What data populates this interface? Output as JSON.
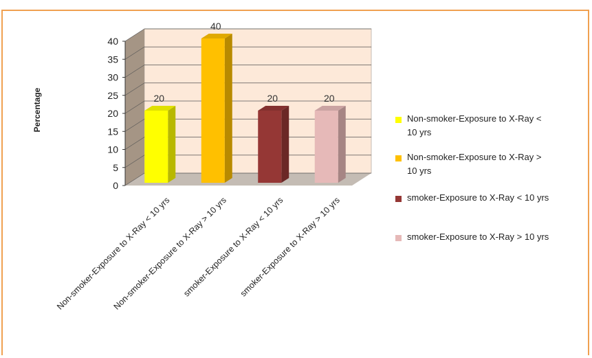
{
  "chart_data": {
    "type": "bar",
    "ylabel": "Percentage",
    "ylim": [
      0,
      40
    ],
    "yticks": [
      0,
      5,
      10,
      15,
      20,
      25,
      30,
      35,
      40
    ],
    "grid": true,
    "legend_position": "right",
    "categories": [
      "Non-smoker-Exposure to X-Ray < 10 yrs",
      "Non-smoker-Exposure to X-Ray > 10 yrs",
      "smoker-Exposure to X-Ray < 10 yrs",
      "smoker-Exposure to X-Ray > 10 yrs"
    ],
    "values": [
      20,
      40,
      20,
      20
    ],
    "data_labels": [
      "20",
      "40",
      "20",
      "20"
    ],
    "colors": [
      "#ffff00",
      "#ffc000",
      "#953735",
      "#e6b9b8"
    ],
    "legend": [
      {
        "line1": "Non-smoker-Exposure to X-Ray <",
        "line2": "10  yrs"
      },
      {
        "line1": "Non-smoker-Exposure to X-Ray >",
        "line2": "10  yrs"
      },
      {
        "line1": "smoker-Exposure to X-Ray < 10  yrs",
        "line2": ""
      },
      {
        "line1": "smoker-Exposure to X-Ray > 10  yrs",
        "line2": ""
      }
    ]
  },
  "colors": {
    "frame_border": "#f0a050",
    "plot_back": "#fde9d9",
    "wall_side": "#a59585",
    "floor": "#c4bcb4"
  }
}
